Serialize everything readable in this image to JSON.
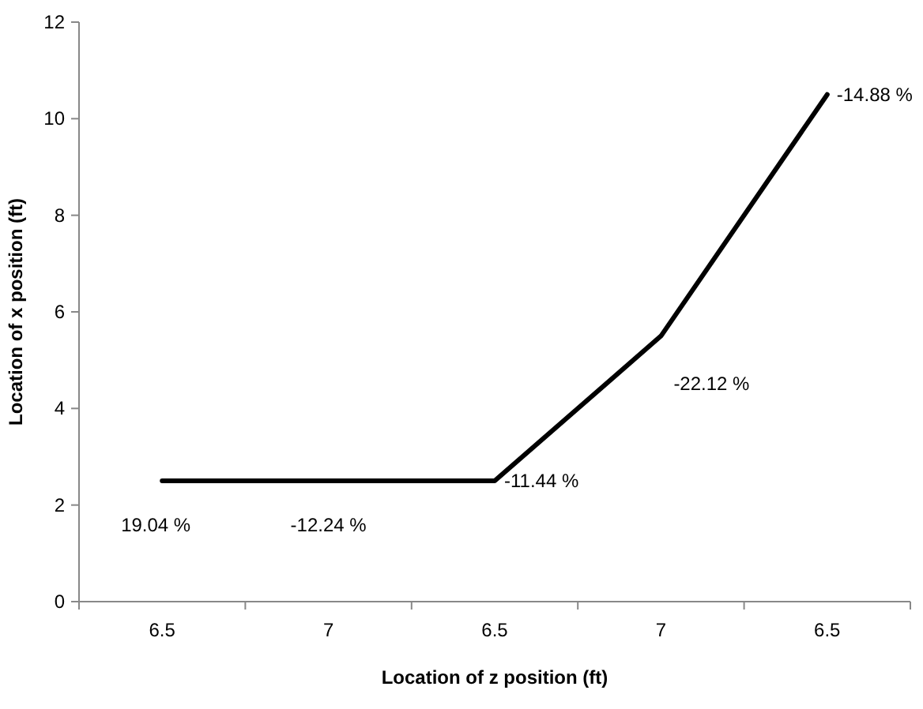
{
  "chart_data": {
    "type": "line",
    "xlabel": "Location of z position (ft)",
    "ylabel": "Location of x position (ft)",
    "categories": [
      "6.5",
      "7",
      "6.5",
      "7",
      "6.5"
    ],
    "series": [
      {
        "color": "#000000",
        "values": [
          2.5,
          2.5,
          2.5,
          5.5,
          10.5
        ]
      }
    ],
    "annotations": [
      "19.04 %",
      "-12.24 %",
      "-11.44 %",
      "-22.12 %",
      "-14.88 %"
    ],
    "ylim": [
      0,
      12
    ],
    "yticks": [
      0,
      2,
      4,
      6,
      8,
      10,
      12
    ],
    "marker": "none",
    "line_style": "solid"
  }
}
